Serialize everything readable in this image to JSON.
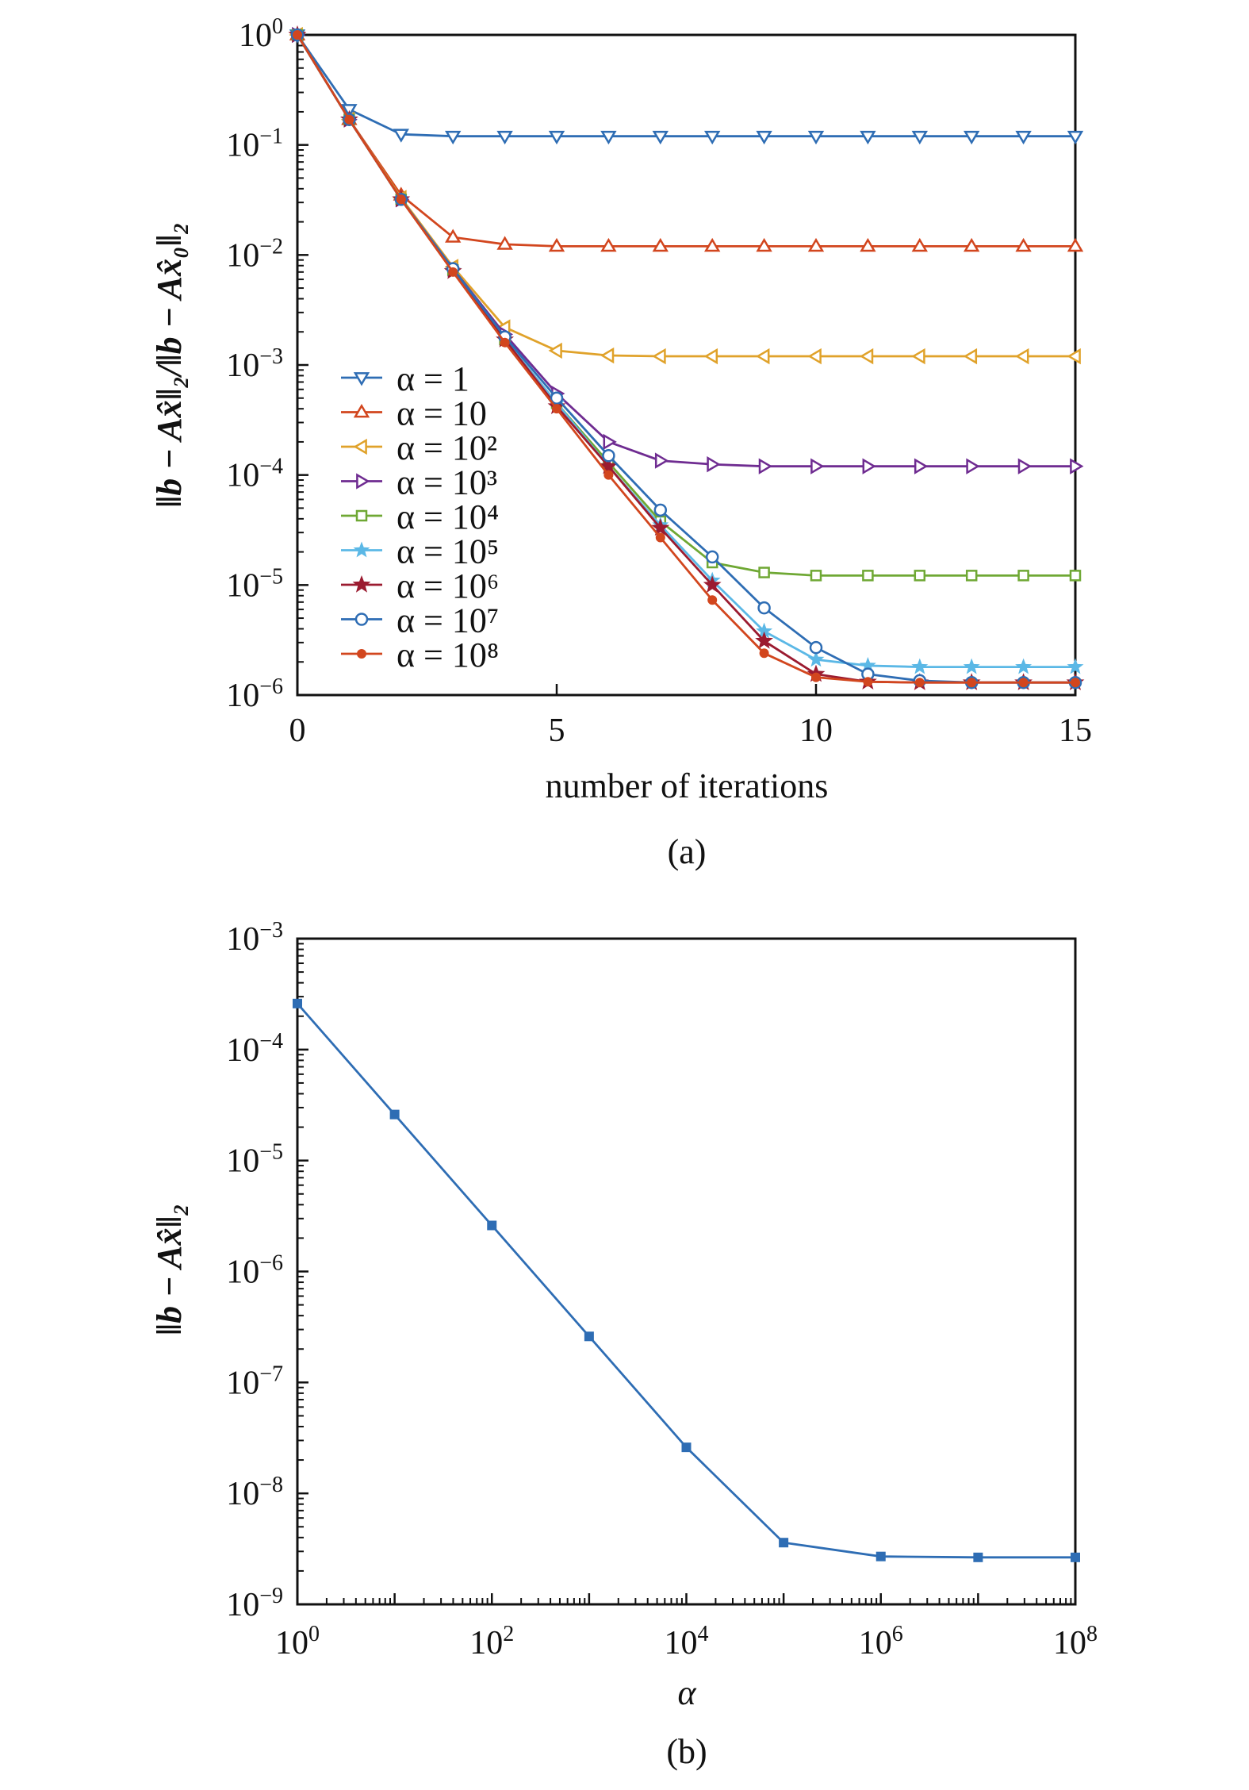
{
  "chart_data": [
    {
      "type": "line",
      "panel_label": "(a)",
      "xlabel": "number of iterations",
      "ylabel": "‖b − Ax̂‖₂/‖b − Ax̂₀‖₂",
      "xscale": "linear",
      "yscale": "log",
      "xlim": [
        0,
        15
      ],
      "ylim": [
        1e-06,
        1
      ],
      "xticks": [
        "0",
        "5",
        "10",
        "15"
      ],
      "yticks": [
        {
          "base": "10",
          "exp": "0"
        },
        {
          "base": "10",
          "exp": "−1"
        },
        {
          "base": "10",
          "exp": "−2"
        },
        {
          "base": "10",
          "exp": "−3"
        },
        {
          "base": "10",
          "exp": "−4"
        },
        {
          "base": "10",
          "exp": "−5"
        },
        {
          "base": "10",
          "exp": "−6"
        }
      ],
      "legend_position": "center-left",
      "x": [
        0,
        1,
        2,
        3,
        4,
        5,
        6,
        7,
        8,
        9,
        10,
        11,
        12,
        13,
        14,
        15
      ],
      "series": [
        {
          "name": "α = 1",
          "marker": "triangle-down",
          "color": "#2e6db4",
          "values": [
            1,
            0.21,
            0.125,
            0.12,
            0.12,
            0.12,
            0.12,
            0.12,
            0.12,
            0.12,
            0.12,
            0.12,
            0.12,
            0.12,
            0.12,
            0.12
          ]
        },
        {
          "name": "α = 10",
          "marker": "triangle-up",
          "color": "#d2461e",
          "values": [
            1,
            0.17,
            0.035,
            0.0145,
            0.0125,
            0.012,
            0.012,
            0.012,
            0.012,
            0.012,
            0.012,
            0.012,
            0.012,
            0.012,
            0.012,
            0.012
          ]
        },
        {
          "name": "α = 10²",
          "marker": "triangle-left",
          "color": "#e0a22a",
          "values": [
            1,
            0.17,
            0.033,
            0.0078,
            0.0022,
            0.00135,
            0.00122,
            0.0012,
            0.0012,
            0.0012,
            0.0012,
            0.0012,
            0.0012,
            0.0012,
            0.0012,
            0.0012
          ]
        },
        {
          "name": "α = 10³",
          "marker": "triangle-right",
          "color": "#6f2c91",
          "values": [
            1,
            0.17,
            0.032,
            0.0075,
            0.0019,
            0.00055,
            0.0002,
            0.000135,
            0.000125,
            0.00012,
            0.00012,
            0.00012,
            0.00012,
            0.00012,
            0.00012,
            0.00012
          ]
        },
        {
          "name": "α = 10⁴",
          "marker": "square-open",
          "color": "#6fa834",
          "values": [
            1,
            0.17,
            0.032,
            0.0073,
            0.0017,
            0.00045,
            0.00013,
            3.8e-05,
            1.6e-05,
            1.3e-05,
            1.22e-05,
            1.22e-05,
            1.22e-05,
            1.22e-05,
            1.22e-05,
            1.22e-05
          ]
        },
        {
          "name": "α = 10⁵",
          "marker": "star-light",
          "color": "#5bb8e6",
          "values": [
            1,
            0.17,
            0.032,
            0.0072,
            0.0017,
            0.00045,
            0.00012,
            3.5e-05,
            1.1e-05,
            3.8e-06,
            2.1e-06,
            1.85e-06,
            1.8e-06,
            1.8e-06,
            1.8e-06,
            1.8e-06
          ]
        },
        {
          "name": "α = 10⁶",
          "marker": "star",
          "color": "#9b1b30",
          "values": [
            1,
            0.17,
            0.032,
            0.0071,
            0.0017,
            0.00042,
            0.00012,
            3.3e-05,
            1e-05,
            3.1e-06,
            1.55e-06,
            1.32e-06,
            1.3e-06,
            1.3e-06,
            1.3e-06,
            1.3e-06
          ]
        },
        {
          "name": "α = 10⁷",
          "marker": "circle-open",
          "color": "#2e6db4",
          "values": [
            1,
            0.17,
            0.032,
            0.0075,
            0.0018,
            0.0005,
            0.00015,
            4.8e-05,
            1.8e-05,
            6.2e-06,
            2.7e-06,
            1.55e-06,
            1.35e-06,
            1.3e-06,
            1.3e-06,
            1.3e-06
          ]
        },
        {
          "name": "α = 10⁸",
          "marker": "dot",
          "color": "#d2461e",
          "values": [
            1,
            0.17,
            0.032,
            0.007,
            0.0016,
            0.0004,
            0.0001,
            2.7e-05,
            7.3e-06,
            2.4e-06,
            1.45e-06,
            1.32e-06,
            1.3e-06,
            1.3e-06,
            1.3e-06,
            1.3e-06
          ]
        }
      ]
    },
    {
      "type": "line",
      "panel_label": "(b)",
      "xlabel": "α",
      "ylabel": "‖b − Ax̂‖₂",
      "xscale": "log",
      "yscale": "log",
      "xlim": [
        1,
        100000000.0
      ],
      "ylim": [
        1e-09,
        0.001
      ],
      "xticks": [
        {
          "base": "10",
          "exp": "0"
        },
        {
          "base": "10",
          "exp": "2"
        },
        {
          "base": "10",
          "exp": "4"
        },
        {
          "base": "10",
          "exp": "6"
        },
        {
          "base": "10",
          "exp": "8"
        }
      ],
      "yticks": [
        {
          "base": "10",
          "exp": "−3"
        },
        {
          "base": "10",
          "exp": "−4"
        },
        {
          "base": "10",
          "exp": "−5"
        },
        {
          "base": "10",
          "exp": "−6"
        },
        {
          "base": "10",
          "exp": "−7"
        },
        {
          "base": "10",
          "exp": "−8"
        },
        {
          "base": "10",
          "exp": "−9"
        }
      ],
      "x": [
        1,
        10,
        100,
        1000,
        10000,
        100000,
        1000000,
        10000000,
        100000000
      ],
      "series": [
        {
          "marker": "square",
          "color": "#2e6db4",
          "values": [
            0.00026,
            2.6e-05,
            2.6e-06,
            2.6e-07,
            2.6e-08,
            3.6e-09,
            2.7e-09,
            2.65e-09,
            2.65e-09
          ]
        }
      ]
    }
  ]
}
